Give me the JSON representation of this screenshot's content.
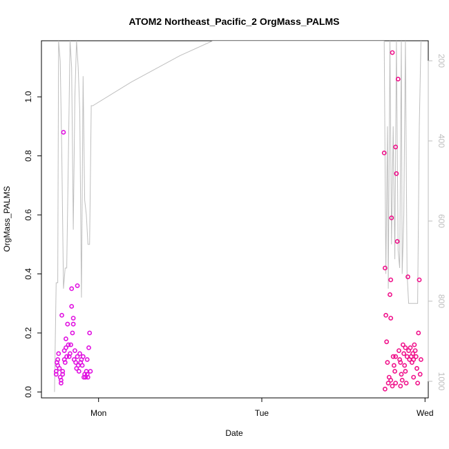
{
  "chart_data": {
    "type": "scatter",
    "title": "ATOM2 Northeast_Pacific_2 OrgMass_PALMS",
    "xlabel": "Date",
    "ylabel": "OrgMass_PALMS",
    "x_unit": "days",
    "xlim": [
      -0.35,
      2.02
    ],
    "ylim": [
      -0.02,
      1.19
    ],
    "x_ticks": [
      {
        "value": 0,
        "label": "Mon"
      },
      {
        "value": 1,
        "label": "Tue"
      },
      {
        "value": 2,
        "label": "Wed"
      }
    ],
    "y_ticks": [
      0.0,
      0.2,
      0.4,
      0.6,
      0.8,
      1.0
    ],
    "y_tick_labels": [
      "0.0",
      "0.2",
      "0.4",
      "0.6",
      "0.8",
      "1.0"
    ],
    "right_axis": {
      "variable": "pressure",
      "reversed": true,
      "ticks": [
        200,
        400,
        600,
        800,
        1000
      ],
      "tick_labels": [
        "200",
        "400",
        "600",
        "800",
        "1000"
      ],
      "color": "#bebebe"
    },
    "grid": false,
    "legend": "none",
    "colors": {
      "flight1": "#e010e0",
      "flight2": "#f0108a",
      "altitude_line": "#bebebe",
      "axes": "#000000"
    },
    "series": [
      {
        "color": "#e010e0",
        "points": [
          [
            -0.26,
            0.07
          ],
          [
            -0.26,
            0.06
          ],
          [
            -0.255,
            0.1
          ],
          [
            -0.25,
            0.09
          ],
          [
            -0.25,
            0.11
          ],
          [
            -0.245,
            0.13
          ],
          [
            -0.24,
            0.08
          ],
          [
            -0.235,
            0.05
          ],
          [
            -0.23,
            0.04
          ],
          [
            -0.23,
            0.03
          ],
          [
            -0.225,
            0.26
          ],
          [
            -0.22,
            0.06
          ],
          [
            -0.22,
            0.07
          ],
          [
            -0.215,
            0.88
          ],
          [
            -0.21,
            0.14
          ],
          [
            -0.21,
            0.11
          ],
          [
            -0.205,
            0.1
          ],
          [
            -0.2,
            0.18
          ],
          [
            -0.2,
            0.15
          ],
          [
            -0.195,
            0.12
          ],
          [
            -0.19,
            0.23
          ],
          [
            -0.185,
            0.16
          ],
          [
            -0.18,
            0.12
          ],
          [
            -0.175,
            0.13
          ],
          [
            -0.17,
            0.16
          ],
          [
            -0.165,
            0.35
          ],
          [
            -0.165,
            0.29
          ],
          [
            -0.16,
            0.2
          ],
          [
            -0.155,
            0.23
          ],
          [
            -0.155,
            0.25
          ],
          [
            -0.15,
            0.11
          ],
          [
            -0.145,
            0.14
          ],
          [
            -0.14,
            0.1
          ],
          [
            -0.135,
            0.08
          ],
          [
            -0.13,
            0.36
          ],
          [
            -0.13,
            0.12
          ],
          [
            -0.125,
            0.09
          ],
          [
            -0.12,
            0.07
          ],
          [
            -0.115,
            0.13
          ],
          [
            -0.11,
            0.1
          ],
          [
            -0.105,
            0.11
          ],
          [
            -0.1,
            0.09
          ],
          [
            -0.095,
            0.12
          ],
          [
            -0.09,
            0.05
          ],
          [
            -0.085,
            0.06
          ],
          [
            -0.08,
            0.05
          ],
          [
            -0.075,
            0.07
          ],
          [
            -0.07,
            0.06
          ],
          [
            -0.07,
            0.11
          ],
          [
            -0.065,
            0.05
          ],
          [
            -0.06,
            0.15
          ],
          [
            -0.055,
            0.2
          ],
          [
            -0.05,
            0.07
          ]
        ]
      },
      {
        "color": "#f0108a",
        "points": [
          [
            1.75,
            0.81
          ],
          [
            1.755,
            0.42
          ],
          [
            1.76,
            0.26
          ],
          [
            1.765,
            0.17
          ],
          [
            1.77,
            0.1
          ],
          [
            1.775,
            0.03
          ],
          [
            1.78,
            0.05
          ],
          [
            1.785,
            0.33
          ],
          [
            1.79,
            0.38
          ],
          [
            1.79,
            0.25
          ],
          [
            1.795,
            0.59
          ],
          [
            1.8,
            1.15
          ],
          [
            1.8,
            0.02
          ],
          [
            1.805,
            0.12
          ],
          [
            1.81,
            0.09
          ],
          [
            1.815,
            0.07
          ],
          [
            1.82,
            0.03
          ],
          [
            1.82,
            0.83
          ],
          [
            1.825,
            0.74
          ],
          [
            1.83,
            0.51
          ],
          [
            1.835,
            1.06
          ],
          [
            1.84,
            0.14
          ],
          [
            1.845,
            0.11
          ],
          [
            1.85,
            0.1
          ],
          [
            1.855,
            0.06
          ],
          [
            1.86,
            0.04
          ],
          [
            1.865,
            0.16
          ],
          [
            1.87,
            0.13
          ],
          [
            1.875,
            0.09
          ],
          [
            1.88,
            0.07
          ],
          [
            1.885,
            0.03
          ],
          [
            1.89,
            0.12
          ],
          [
            1.895,
            0.39
          ],
          [
            1.9,
            0.14
          ],
          [
            1.905,
            0.11
          ],
          [
            1.91,
            0.15
          ],
          [
            1.915,
            0.12
          ],
          [
            1.92,
            0.1
          ],
          [
            1.925,
            0.13
          ],
          [
            1.93,
            0.11
          ],
          [
            1.935,
            0.16
          ],
          [
            1.94,
            0.14
          ],
          [
            1.945,
            0.12
          ],
          [
            1.95,
            0.08
          ],
          [
            1.955,
            0.03
          ],
          [
            1.96,
            0.2
          ],
          [
            1.965,
            0.38
          ],
          [
            1.97,
            0.06
          ],
          [
            1.975,
            0.11
          ],
          [
            1.755,
            0.01
          ],
          [
            1.79,
            0.04
          ],
          [
            1.82,
            0.12
          ],
          [
            1.85,
            0.02
          ],
          [
            1.88,
            0.15
          ],
          [
            1.93,
            0.05
          ]
        ]
      }
    ],
    "altitude_line": [
      [
        -0.27,
        0.0
      ],
      [
        -0.26,
        0.37
      ],
      [
        -0.25,
        0.37
      ],
      [
        -0.245,
        1.19
      ],
      [
        -0.235,
        1.12
      ],
      [
        -0.225,
        0.8
      ],
      [
        -0.215,
        0.35
      ],
      [
        -0.205,
        0.42
      ],
      [
        -0.195,
        0.42
      ],
      [
        -0.185,
        0.8
      ],
      [
        -0.175,
        1.19
      ],
      [
        -0.165,
        1.1
      ],
      [
        -0.155,
        0.55
      ],
      [
        -0.145,
        1.0
      ],
      [
        -0.135,
        1.19
      ],
      [
        -0.125,
        1.1
      ],
      [
        -0.115,
        0.95
      ],
      [
        -0.105,
        0.32
      ],
      [
        -0.095,
        1.07
      ],
      [
        -0.085,
        0.65
      ],
      [
        -0.075,
        0.6
      ],
      [
        -0.065,
        0.5
      ],
      [
        -0.055,
        0.5
      ],
      [
        -0.045,
        0.97
      ],
      [
        -0.035,
        0.97
      ],
      [
        0.2,
        1.05
      ],
      [
        0.5,
        1.14
      ],
      [
        0.7,
        1.19
      ],
      [
        1.75,
        1.19
      ],
      [
        1.76,
        0.4
      ],
      [
        1.77,
        0.9
      ],
      [
        1.775,
        0.35
      ],
      [
        1.785,
        1.19
      ],
      [
        1.795,
        0.5
      ],
      [
        1.805,
        0.9
      ],
      [
        1.815,
        0.45
      ],
      [
        1.825,
        1.19
      ],
      [
        1.835,
        0.48
      ],
      [
        1.845,
        0.42
      ],
      [
        1.855,
        1.19
      ],
      [
        1.86,
        0.4
      ],
      [
        1.87,
        0.6
      ],
      [
        1.88,
        1.19
      ],
      [
        1.89,
        0.4
      ],
      [
        1.9,
        0.3
      ],
      [
        1.935,
        0.3
      ],
      [
        1.955,
        0.3
      ],
      [
        1.965,
        0.9
      ],
      [
        1.975,
        1.19
      ]
    ]
  }
}
